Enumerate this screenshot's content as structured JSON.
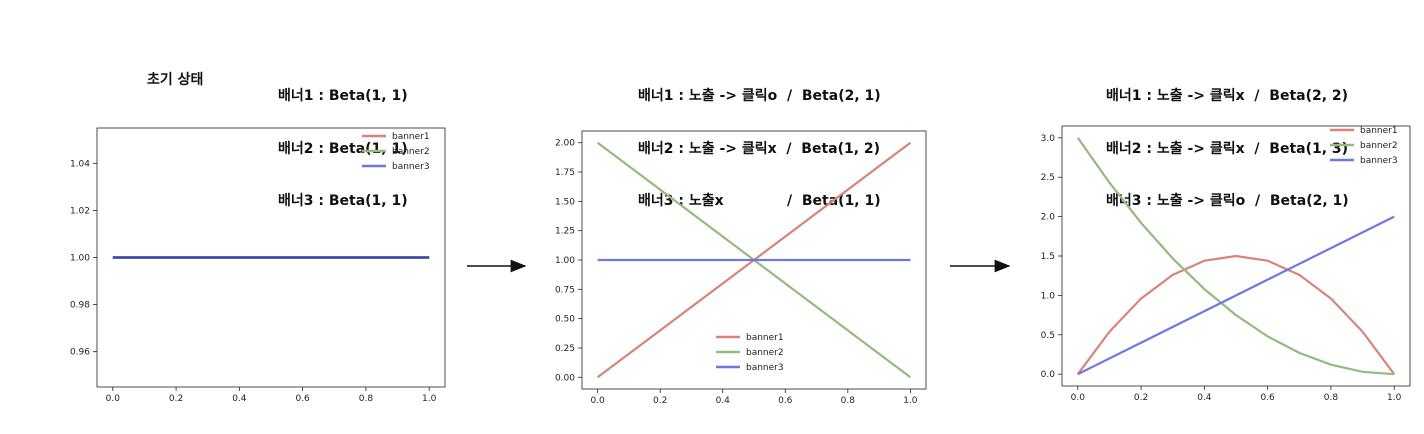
{
  "initial_label": "초기 상태",
  "captions": [
    [
      "배너1 : Beta(1, 1)",
      "배너2 : Beta(1, 1)",
      "배너3 : Beta(1, 1)"
    ],
    [
      "배너1 : 노출 -> 클릭o  /  Beta(2, 1)",
      "배너2 : 노출 -> 클릭x  /  Beta(1, 2)",
      "배너3 : 노출x             /  Beta(1, 1)"
    ],
    [
      "배너1 : 노출 -> 클릭x  /  Beta(2, 2)",
      "배너2 : 노출 -> 클릭x  /  Beta(1, 3)",
      "배너3 : 노출 -> 클릭o  /  Beta(2, 1)"
    ]
  ],
  "colors": {
    "banner1": "#d9837a",
    "banner2": "#93bb7f",
    "banner3": "#6f76e6",
    "axis": "#222222"
  },
  "chart_data": [
    {
      "type": "line",
      "title": "",
      "xlabel": "",
      "ylabel": "",
      "xlim": [
        -0.05,
        1.05
      ],
      "ylim": [
        0.945,
        1.055
      ],
      "xticks": [
        "0.0",
        "0.2",
        "0.4",
        "0.6",
        "0.8",
        "1.0"
      ],
      "yticks": [
        "0.96",
        "0.98",
        "1.00",
        "1.02",
        "1.04"
      ],
      "legend": "top-right",
      "series": [
        {
          "name": "banner1",
          "distribution": "Beta(1, 1)",
          "x": [
            0,
            1
          ],
          "y": [
            1,
            1
          ]
        },
        {
          "name": "banner2",
          "distribution": "Beta(1, 1)",
          "x": [
            0,
            1
          ],
          "y": [
            1,
            1
          ]
        },
        {
          "name": "banner3",
          "distribution": "Beta(1, 1)",
          "x": [
            0,
            1
          ],
          "y": [
            1,
            1
          ]
        }
      ]
    },
    {
      "type": "line",
      "title": "",
      "xlabel": "",
      "ylabel": "",
      "xlim": [
        -0.05,
        1.05
      ],
      "ylim": [
        -0.1,
        2.1
      ],
      "xticks": [
        "0.0",
        "0.2",
        "0.4",
        "0.6",
        "0.8",
        "1.0"
      ],
      "yticks": [
        "0.00",
        "0.25",
        "0.50",
        "0.75",
        "1.00",
        "1.25",
        "1.50",
        "1.75",
        "2.00"
      ],
      "legend": "bottom-center",
      "series": [
        {
          "name": "banner1",
          "distribution": "Beta(2, 1)",
          "x": [
            0,
            1
          ],
          "y": [
            0,
            2
          ]
        },
        {
          "name": "banner2",
          "distribution": "Beta(1, 2)",
          "x": [
            0,
            1
          ],
          "y": [
            2,
            0
          ]
        },
        {
          "name": "banner3",
          "distribution": "Beta(1, 1)",
          "x": [
            0,
            1
          ],
          "y": [
            1,
            1
          ]
        }
      ]
    },
    {
      "type": "line",
      "title": "",
      "xlabel": "",
      "ylabel": "",
      "xlim": [
        -0.05,
        1.05
      ],
      "ylim": [
        -0.15,
        3.15
      ],
      "xticks": [
        "0.0",
        "0.2",
        "0.4",
        "0.6",
        "0.8",
        "1.0"
      ],
      "yticks": [
        "0.0",
        "0.5",
        "1.0",
        "1.5",
        "2.0",
        "2.5",
        "3.0"
      ],
      "legend": "top-right",
      "series": [
        {
          "name": "banner1",
          "distribution": "Beta(2, 2)",
          "x": [
            0,
            0.1,
            0.2,
            0.3,
            0.4,
            0.5,
            0.6,
            0.7,
            0.8,
            0.9,
            1.0
          ],
          "y": [
            0,
            0.54,
            0.96,
            1.26,
            1.44,
            1.5,
            1.44,
            1.26,
            0.96,
            0.54,
            0
          ]
        },
        {
          "name": "banner2",
          "distribution": "Beta(1, 3)",
          "x": [
            0,
            0.1,
            0.2,
            0.3,
            0.4,
            0.5,
            0.6,
            0.7,
            0.8,
            0.9,
            1.0
          ],
          "y": [
            3,
            2.43,
            1.92,
            1.47,
            1.08,
            0.75,
            0.48,
            0.27,
            0.12,
            0.03,
            0
          ]
        },
        {
          "name": "banner3",
          "distribution": "Beta(2, 1)",
          "x": [
            0,
            1
          ],
          "y": [
            0,
            2
          ]
        }
      ]
    }
  ]
}
